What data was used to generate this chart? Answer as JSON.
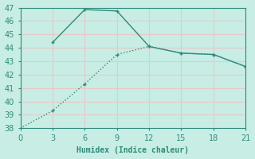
{
  "xlabel": "Humidex (Indice chaleur)",
  "line1_x": [
    0,
    3,
    6,
    9,
    12,
    15,
    18,
    21
  ],
  "line1_y": [
    38,
    39.3,
    41.3,
    43.5,
    44.1,
    43.6,
    43.5,
    42.6
  ],
  "line2_x": [
    3,
    6,
    9,
    12,
    15,
    18,
    21
  ],
  "line2_y": [
    44.4,
    46.85,
    46.75,
    44.1,
    43.6,
    43.5,
    42.6
  ],
  "line_color": "#2e8b7a",
  "bg_color": "#c8ede4",
  "grid_color": "#e8c8c8",
  "xlim": [
    0,
    21
  ],
  "ylim": [
    38,
    47
  ],
  "xticks": [
    0,
    3,
    6,
    9,
    12,
    15,
    18,
    21
  ],
  "yticks": [
    38,
    39,
    40,
    41,
    42,
    43,
    44,
    45,
    46,
    47
  ],
  "xlabel_fontsize": 7,
  "tick_fontsize": 7
}
